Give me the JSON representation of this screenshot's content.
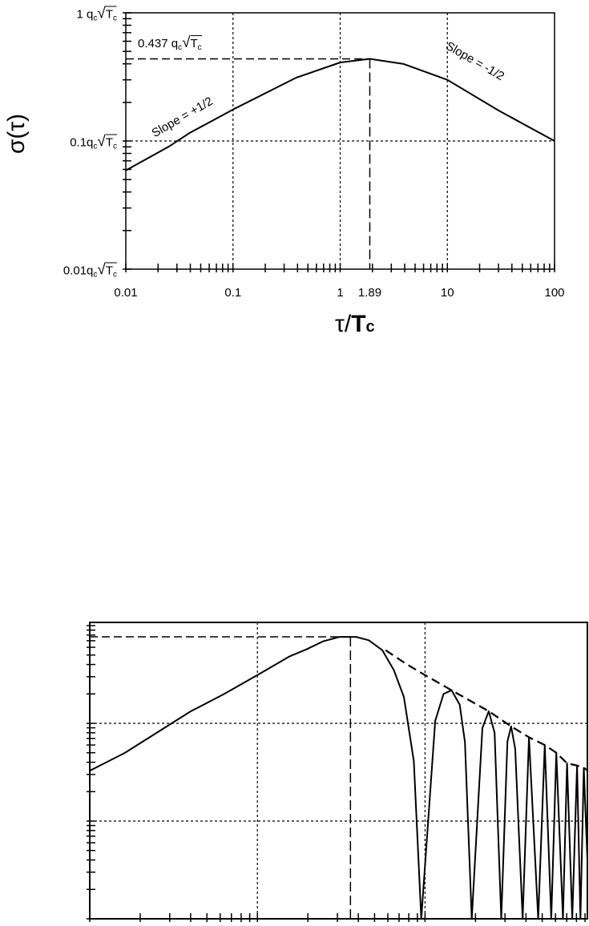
{
  "figures": [
    {
      "chart_data": {
        "type": "line",
        "xscale": "log",
        "yscale": "log",
        "xlim": [
          0.01,
          100
        ],
        "ylim": [
          0.01,
          1
        ],
        "xlabel": {
          "main": "τ/",
          "T": "T",
          "T_sub": "c"
        },
        "ylabel": "σ(τ)",
        "x_ticks": [
          "0.01",
          "0.1",
          "1",
          "1.89",
          "10",
          "100"
        ],
        "x_tick_values": [
          0.01,
          0.1,
          1,
          1.89,
          10,
          100
        ],
        "y_ticks": [
          {
            "value": 1,
            "coef": "1 "
          },
          {
            "value": 0.1,
            "coef": "0.1"
          },
          {
            "value": 0.01,
            "coef": "0.01"
          }
        ],
        "unit": {
          "q": "q",
          "q_sub": "c",
          "sqrt": "√",
          "T": "T",
          "T_sub": "c"
        },
        "grid": {
          "x": [
            0.1,
            1,
            10
          ],
          "y": [
            0.1
          ],
          "style": "dotted"
        },
        "series": [
          {
            "x": [
              0.01,
              0.025,
              0.039,
              0.1,
              0.39,
              1,
              1.89,
              3.87,
              10,
              30,
              100
            ],
            "y": [
              0.059,
              0.09,
              0.115,
              0.176,
              0.312,
              0.41,
              0.437,
              0.4,
              0.3,
              0.173,
              0.1
            ]
          }
        ],
        "peak": {
          "x": 1.89,
          "y": 0.437,
          "label_coef": "0.437 "
        },
        "annotations": [
          {
            "text": "Slope = +1/2",
            "x": 0.032,
            "y": 0.15
          },
          {
            "text": "Slope = -1/2",
            "x": 18,
            "y": 0.3
          }
        ]
      }
    },
    {
      "chart_data": {
        "type": "line",
        "xscale": "log",
        "yscale": "log",
        "xlim": [
          0.1,
          93
        ],
        "ylim": [
          0.001,
          1
        ],
        "grid": {
          "x": [
            1,
            10
          ],
          "y": [
            0.1,
            0.01
          ],
          "style": "dotted"
        },
        "series": [
          {
            "style": "solid",
            "x": [
              0.1,
              0.162,
              0.306,
              0.398,
              0.631,
              1,
              1.56,
              1.96,
              2.46,
              3.08,
              3.88,
              4.62,
              5.56,
              6.52,
              7.48,
              8.57,
              9.5,
              11.5,
              12.9,
              14.4,
              16.1,
              17.3,
              19,
              22,
              24,
              26,
              28.5,
              31,
              32.6,
              34.5,
              38.2,
              41.7,
              47.3,
              51.8,
              56.6,
              60.7,
              66.5,
              70.3,
              75.5,
              80.7,
              84.5,
              88.5,
              93
            ],
            "y": [
              0.0327,
              0.0498,
              0.0993,
              0.132,
              0.199,
              0.312,
              0.485,
              0.571,
              0.69,
              0.767,
              0.767,
              0.708,
              0.56,
              0.35,
              0.186,
              0.041,
              0,
              0.106,
              0.2,
              0.218,
              0.155,
              0.064,
              0,
              0.09,
              0.133,
              0.08,
              0,
              0.065,
              0.093,
              0.055,
              0,
              0.072,
              0,
              0.06,
              0,
              0.05,
              0,
              0.039,
              0,
              0.037,
              0,
              0.035,
              0.004
            ]
          },
          {
            "style": "dashed",
            "x": [
              5.82,
              7.64,
              9.5,
              14.4,
              24,
              32.6,
              41.7,
              51.8,
              60.7,
              70.3,
              80.7,
              88.5,
              93
            ],
            "y": [
              0.56,
              0.41,
              0.328,
              0.218,
              0.133,
              0.093,
              0.072,
              0.06,
              0.05,
              0.039,
              0.037,
              0.035,
              0.033
            ]
          }
        ],
        "peak": {
          "x": 3.59,
          "y": 0.767
        }
      }
    }
  ]
}
